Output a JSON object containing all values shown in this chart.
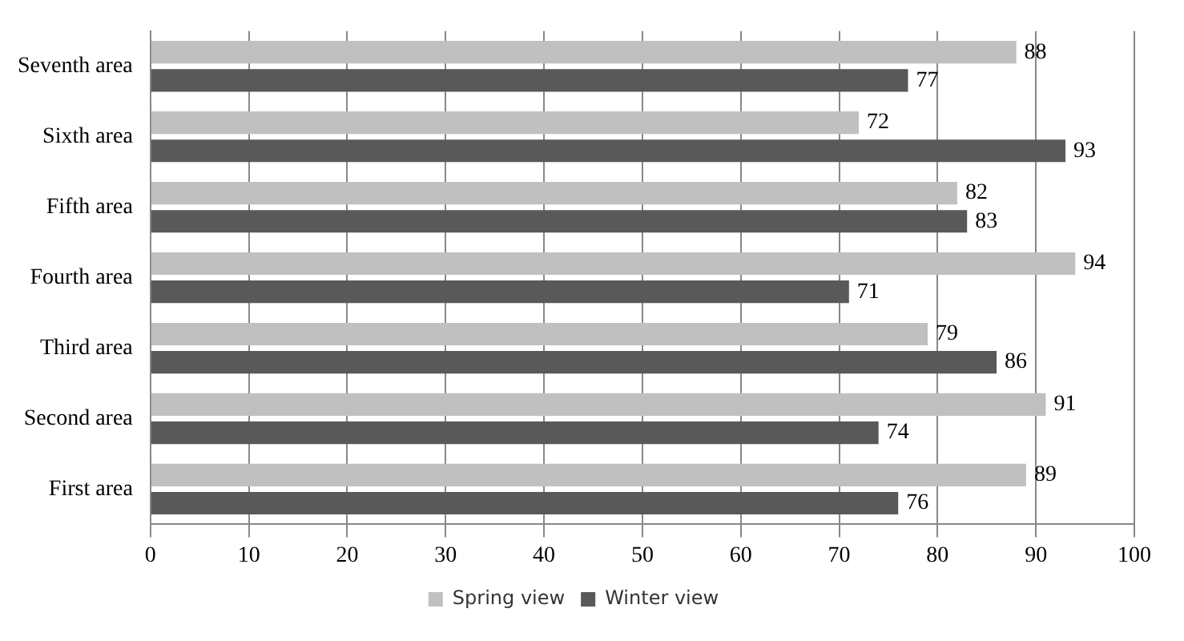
{
  "chart_data": {
    "type": "bar",
    "orientation": "horizontal",
    "categories": [
      "Seventh area",
      "Sixth area",
      "Fifth area",
      "Fourth area",
      "Third area",
      "Second area",
      "First area"
    ],
    "series": [
      {
        "name": "Spring view",
        "color": "#c0c0c0",
        "values": [
          88,
          72,
          82,
          94,
          79,
          91,
          89
        ]
      },
      {
        "name": "Winter view",
        "color": "#595959",
        "values": [
          77,
          93,
          83,
          71,
          86,
          74,
          76
        ]
      }
    ],
    "xlim": [
      0,
      100
    ],
    "xticks": [
      0,
      10,
      20,
      30,
      40,
      50,
      60,
      70,
      80,
      90,
      100
    ],
    "grid": "x",
    "legend": "bottom",
    "data_labels": true
  }
}
